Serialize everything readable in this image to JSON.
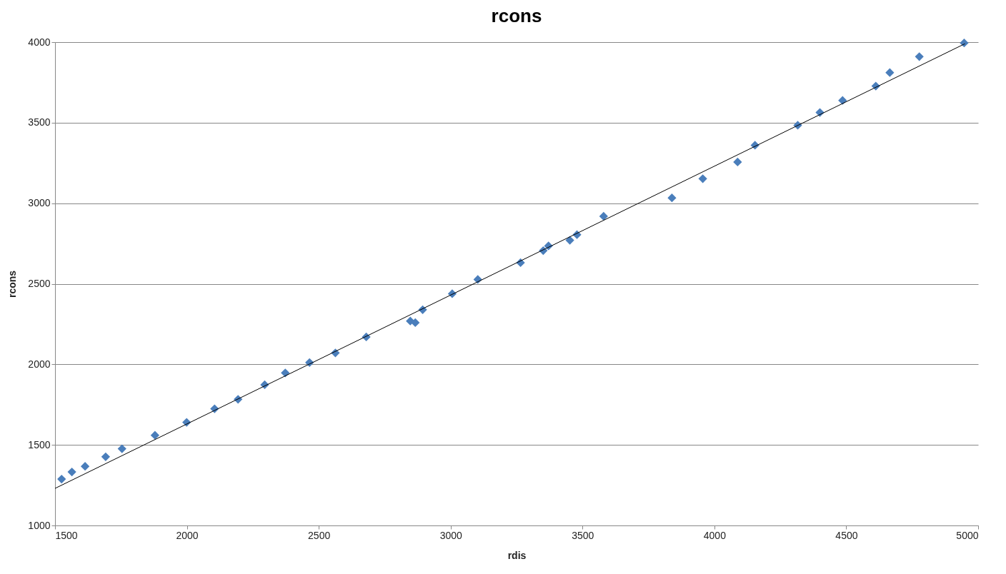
{
  "chart_data": {
    "type": "scatter",
    "title": "rcons",
    "xlabel": "rdis",
    "ylabel": "rcons",
    "xlim": [
      1500,
      5000
    ],
    "xticks": [
      1500,
      2000,
      2500,
      3000,
      3500,
      4000,
      4500,
      5000
    ],
    "ylim": [
      1000,
      4000
    ],
    "yticks": [
      1000,
      1500,
      2000,
      2500,
      3000,
      3500,
      4000
    ],
    "grid": "y",
    "legend": false,
    "marker": "diamond",
    "series": [
      {
        "color": "#4a7ebb",
        "x": [
          1525,
          1564,
          1614,
          1692,
          1754,
          1879,
          1999,
          2105,
          2194,
          2295,
          2373,
          2465,
          2563,
          2680,
          2847,
          2866,
          2894,
          3006,
          3103,
          3265,
          3351,
          3371,
          3452,
          3479,
          3580,
          3839,
          3956,
          4088,
          4154,
          4316,
          4400,
          4486,
          4612,
          4665,
          4777,
          4947
        ],
        "values": [
          1288,
          1332,
          1367,
          1426,
          1476,
          1560,
          1640,
          1724,
          1783,
          1873,
          1947,
          2011,
          2071,
          2170,
          2269,
          2259,
          2339,
          2438,
          2527,
          2631,
          2706,
          2735,
          2770,
          2805,
          2919,
          3033,
          3152,
          3256,
          3360,
          3484,
          3563,
          3638,
          3727,
          3811,
          3910,
          3995
        ]
      },
      {
        "type": "line",
        "color": "#000000",
        "marker": "none",
        "line_style": "solid",
        "x": [
          1500,
          4950
        ],
        "values": [
          1230,
          3990
        ]
      }
    ]
  }
}
